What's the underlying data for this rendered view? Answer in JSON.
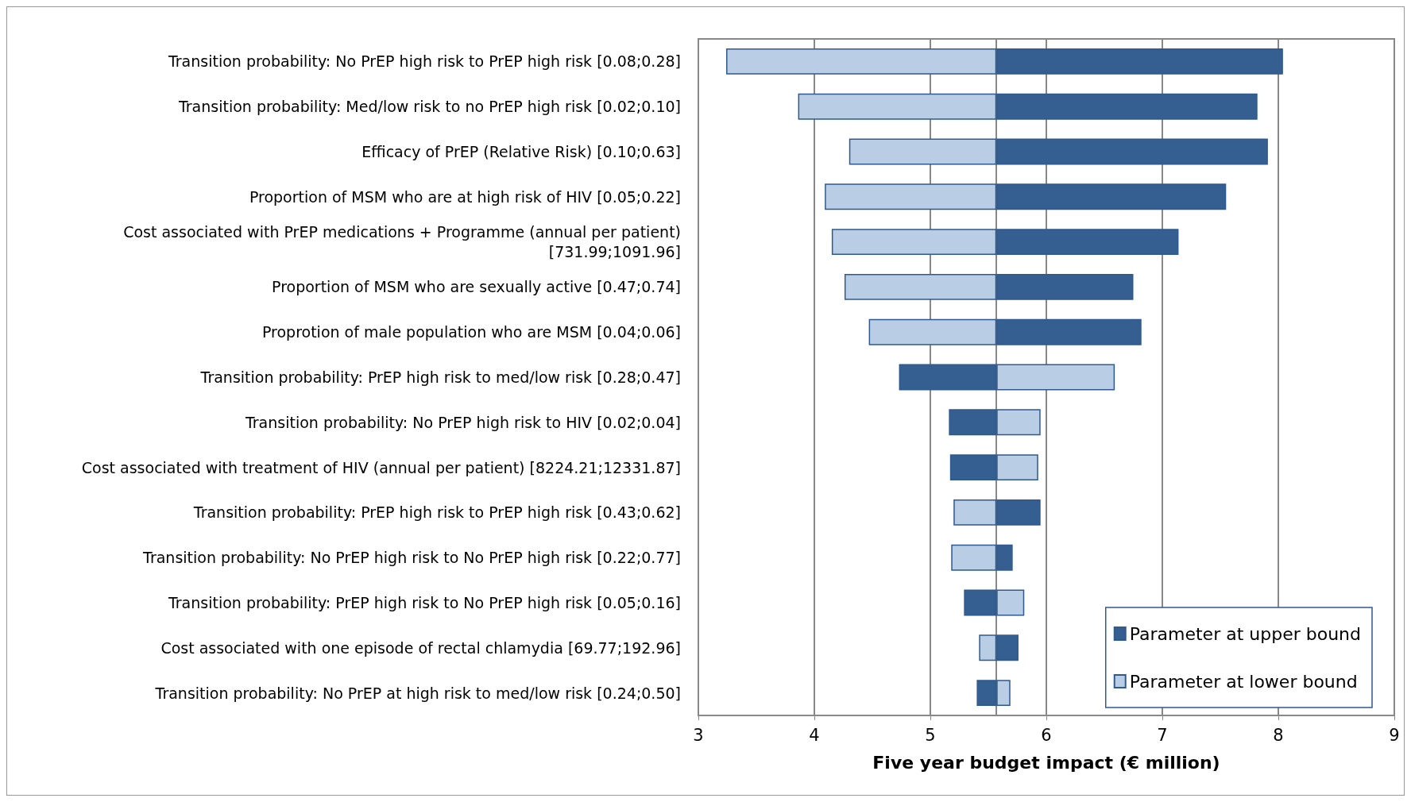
{
  "chart_data": {
    "type": "bar",
    "orientation": "horizontal",
    "xlabel": "Five year budget impact (€ million)",
    "categories": [
      "Transition probability: No PrEP high risk to PrEP high risk [0.08;0.28]",
      "Transition probability: Med/low risk to no PrEP high risk [0.02;0.10]",
      "Efficacy of PrEP (Relative Risk) [0.10;0.63]",
      "Proportion of MSM who are at high risk of HIV [0.05;0.22]",
      "Cost associated with PrEP medications + Programme (annual per patient)\n[731.99;1091.96]",
      "Proportion of MSM who are sexually active [0.47;0.74]",
      "Proprotion of male population who are MSM [0.04;0.06]",
      "Transition probability: PrEP high risk to med/low risk [0.28;0.47]",
      "Transition probability: No PrEP high risk to HIV [0.02;0.04]",
      "Cost associated with treatment of HIV (annual per patient) [8224.21;12331.87]",
      "Transition probability: PrEP high risk to PrEP high risk [0.43;0.62]",
      "Transition probability: No PrEP high risk to No PrEP high risk [0.22;0.77]",
      "Transition probability: PrEP high risk to No PrEP high risk [0.05;0.16]",
      "Cost associated with one episode of rectal chlamydia [69.77;192.96]",
      "Transition probability: No PrEP at high risk to med/low risk [0.24;0.50]"
    ],
    "series": [
      {
        "name": "Parameter at upper bound",
        "color": "#355f91",
        "base": [
          5.57,
          5.57,
          5.57,
          5.57,
          5.57,
          5.57,
          5.57,
          5.57,
          5.57,
          5.57,
          5.57,
          5.57,
          5.57,
          5.57,
          5.57
        ],
        "values": [
          2.47,
          2.25,
          2.34,
          1.98,
          1.57,
          1.18,
          1.25,
          -0.84,
          -0.41,
          -0.4,
          0.38,
          0.14,
          -0.28,
          0.19,
          -0.17
        ]
      },
      {
        "name": "Parameter at lower bound",
        "color": "#b9cde5",
        "base": [
          5.57,
          5.57,
          5.57,
          5.57,
          5.57,
          5.57,
          5.57,
          5.57,
          5.57,
          5.57,
          5.57,
          5.57,
          5.57,
          5.57,
          5.57
        ],
        "values": [
          -2.33,
          -1.71,
          -1.27,
          -1.48,
          -1.42,
          -1.31,
          -1.1,
          1.02,
          0.38,
          0.36,
          -0.37,
          -0.39,
          0.24,
          -0.15,
          0.12
        ]
      }
    ],
    "xlim": [
      3,
      9
    ],
    "xticks": [
      3,
      4,
      5,
      6,
      7,
      8,
      9
    ],
    "grid": "x",
    "legend": "bottom right"
  }
}
